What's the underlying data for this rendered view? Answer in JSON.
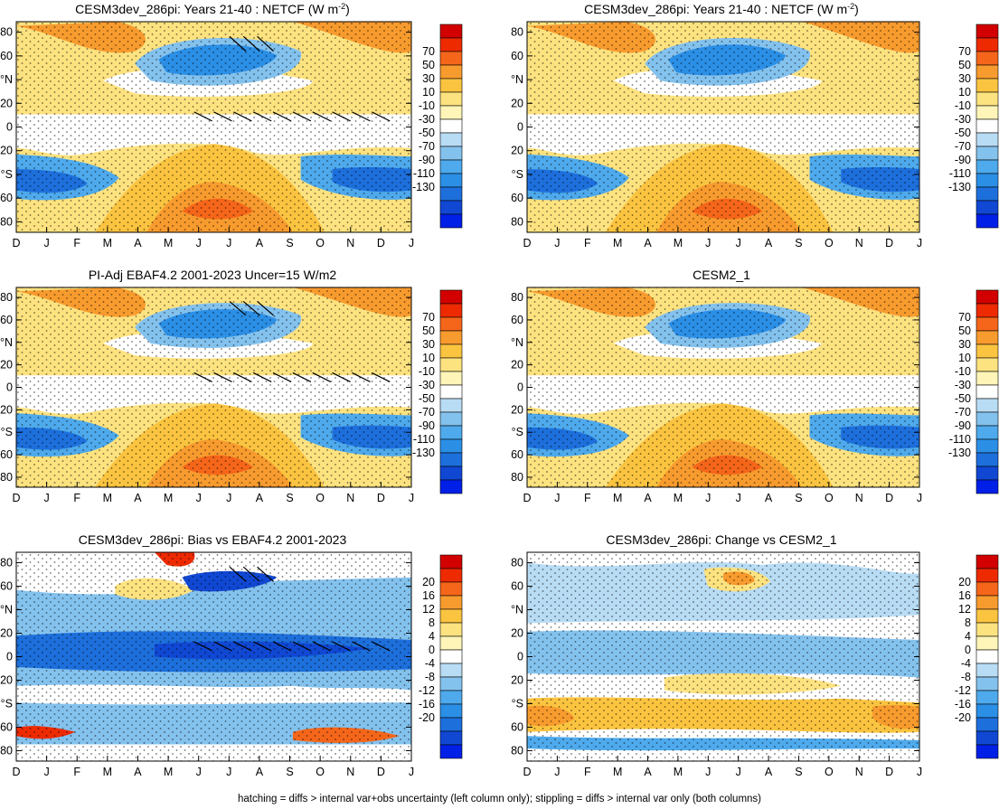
{
  "footnote": "hatching = diffs > internal var+obs uncertainty (left column only); stippling = diffs > internal var only (both columns)",
  "chart_data": [
    {
      "type": "heatmap",
      "title": "CESM3dev_286pi: Years 21-40 : NETCF (W m-2)",
      "title_main": "CESM3dev_286pi: Years 21-40 : NETCF (W m",
      "title_sup": "-2",
      "title_end": ")",
      "x_ticks": [
        "D",
        "J",
        "F",
        "M",
        "A",
        "M",
        "J",
        "J",
        "A",
        "S",
        "O",
        "N",
        "D",
        "J"
      ],
      "y_ticks": [
        "80",
        "60",
        "°N",
        "20",
        "0",
        "20",
        "°S",
        "60",
        "80"
      ],
      "colorbar": [
        "70",
        "50",
        "30",
        "10",
        "-10",
        "-30",
        "-50",
        "-70",
        "-90",
        "-110",
        "-130"
      ],
      "hatching": true
    },
    {
      "type": "heatmap",
      "title": "CESM3dev_286pi: Years 21-40 : NETCF (W m-2)",
      "title_main": "CESM3dev_286pi: Years 21-40 : NETCF (W m",
      "title_sup": "-2",
      "title_end": ")",
      "x_ticks": [
        "D",
        "J",
        "F",
        "M",
        "A",
        "M",
        "J",
        "J",
        "A",
        "S",
        "O",
        "N",
        "D",
        "J"
      ],
      "y_ticks": [
        "80",
        "60",
        "°N",
        "20",
        "0",
        "20",
        "°S",
        "60",
        "80"
      ],
      "colorbar": [
        "70",
        "50",
        "30",
        "10",
        "-10",
        "-30",
        "-50",
        "-70",
        "-90",
        "-110",
        "-130"
      ],
      "hatching": false
    },
    {
      "type": "heatmap",
      "title": "PI-Adj EBAF4.2 2001-2023 Uncer=15 W/m2",
      "title_main": "PI-Adj EBAF4.2 2001-2023 Uncer=15 W/m2",
      "x_ticks": [
        "D",
        "J",
        "F",
        "M",
        "A",
        "M",
        "J",
        "J",
        "A",
        "S",
        "O",
        "N",
        "D",
        "J"
      ],
      "y_ticks": [
        "80",
        "60",
        "°N",
        "20",
        "0",
        "20",
        "°S",
        "60",
        "80"
      ],
      "colorbar": [
        "70",
        "50",
        "30",
        "10",
        "-10",
        "-30",
        "-50",
        "-70",
        "-90",
        "-110",
        "-130"
      ],
      "hatching": true
    },
    {
      "type": "heatmap",
      "title": "CESM2_1",
      "title_main": "CESM2_1",
      "x_ticks": [
        "D",
        "J",
        "F",
        "M",
        "A",
        "M",
        "J",
        "J",
        "A",
        "S",
        "O",
        "N",
        "D",
        "J"
      ],
      "y_ticks": [
        "80",
        "60",
        "°N",
        "20",
        "0",
        "20",
        "°S",
        "60",
        "80"
      ],
      "colorbar": [
        "70",
        "50",
        "30",
        "10",
        "-10",
        "-30",
        "-50",
        "-70",
        "-90",
        "-110",
        "-130"
      ],
      "hatching": false
    },
    {
      "type": "heatmap",
      "title": "CESM3dev_286pi: Bias vs EBAF4.2 2001-2023",
      "title_main": "CESM3dev_286pi: Bias vs EBAF4.2 2001-2023",
      "x_ticks": [
        "D",
        "J",
        "F",
        "M",
        "A",
        "M",
        "J",
        "J",
        "A",
        "S",
        "O",
        "N",
        "D",
        "J"
      ],
      "y_ticks": [
        "80",
        "60",
        "°N",
        "20",
        "0",
        "20",
        "°S",
        "60",
        "80"
      ],
      "colorbar": [
        "20",
        "16",
        "12",
        "8",
        "4",
        "0",
        "-4",
        "-8",
        "-12",
        "-16",
        "-20"
      ],
      "hatching": true
    },
    {
      "type": "heatmap",
      "title": "CESM3dev_286pi: Change vs CESM2_1",
      "title_main": "CESM3dev_286pi: Change vs CESM2_1",
      "x_ticks": [
        "D",
        "J",
        "F",
        "M",
        "A",
        "M",
        "J",
        "J",
        "A",
        "S",
        "O",
        "N",
        "D",
        "J"
      ],
      "y_ticks": [
        "80",
        "60",
        "°N",
        "20",
        "0",
        "20",
        "°S",
        "60",
        "80"
      ],
      "colorbar": [
        "20",
        "16",
        "12",
        "8",
        "4",
        "0",
        "-4",
        "-8",
        "-12",
        "-16",
        "-20"
      ],
      "hatching": false
    }
  ],
  "palette": [
    "#d20000",
    "#ee2a00",
    "#f5661a",
    "#f89b2e",
    "#fbc440",
    "#fde280",
    "#fff5b8",
    "#ffffff",
    "#b8dcf4",
    "#84c2ee",
    "#4eaaec",
    "#2b8fe6",
    "#1d6fdc",
    "#1048d4",
    "#0020e8"
  ]
}
